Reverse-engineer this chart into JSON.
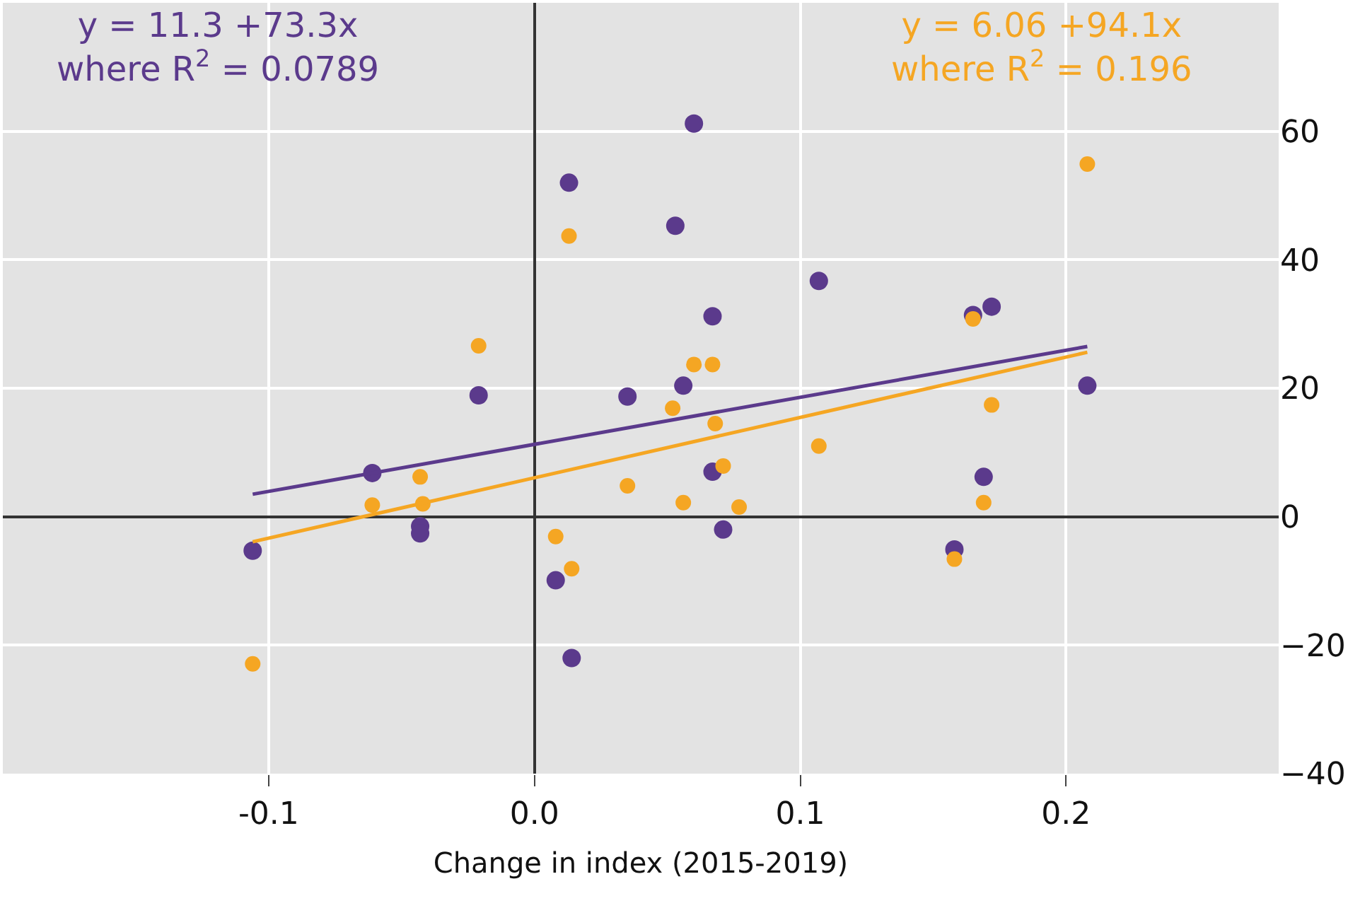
{
  "chart_data": {
    "type": "scatter",
    "xlabel": "Change in index (2015-2019)",
    "xlim": [
      -0.2,
      0.28
    ],
    "xticks": [
      -0.1,
      {
        "value": 0,
        "label": "0.0"
      },
      0.1,
      0.2
    ],
    "ylim": [
      -40,
      80
    ],
    "yticks": [
      {
        "value": -40,
        "label": "−40"
      },
      {
        "value": -20,
        "label": "−20"
      },
      0,
      20,
      40,
      60,
      {
        "value": 80,
        "label": null
      }
    ],
    "grid": true,
    "marker": "circle",
    "series": [
      {
        "color": "#5b3a8c",
        "x": [
          0.013,
          -0.021,
          0.035,
          -0.061,
          -0.043,
          -0.043,
          -0.106,
          0.008,
          0.014,
          0.06,
          0.053,
          0.107,
          0.067,
          0.172,
          0.165,
          0.056,
          0.208,
          0.067,
          0.169,
          0.071,
          0.158
        ],
        "values": [
          52,
          18.9,
          18.7,
          6.8,
          -1.5,
          -2.6,
          -5.3,
          -9.9,
          -22,
          61.2,
          45.3,
          36.7,
          31.2,
          32.7,
          31.4,
          20.4,
          20.4,
          7.0,
          6.2,
          -2.0,
          -5.1
        ]
      },
      {
        "color": "#f5a623",
        "x": [
          0.013,
          -0.021,
          -0.043,
          -0.061,
          -0.042,
          0.035,
          0.008,
          0.014,
          -0.106,
          0.208,
          0.165,
          0.06,
          0.067,
          0.052,
          0.172,
          0.068,
          0.107,
          0.071,
          0.056,
          0.077,
          0.169,
          0.158
        ],
        "values": [
          43.7,
          26.6,
          6.2,
          1.8,
          2.0,
          4.8,
          -3.1,
          -8.1,
          -22.9,
          54.9,
          30.8,
          23.7,
          23.7,
          16.9,
          17.4,
          14.5,
          11.0,
          7.9,
          2.2,
          1.5,
          2.2,
          -6.6
        ]
      },
      {
        "type": "line",
        "color": "#5b3a8c",
        "marker": "none",
        "x": [
          -0.106,
          0.208
        ],
        "values": [
          3.5,
          26.5
        ]
      },
      {
        "type": "line",
        "color": "#f5a623",
        "marker": "none",
        "x": [
          -0.106,
          0.208
        ],
        "values": [
          -3.9,
          25.6
        ]
      }
    ],
    "annotations": [
      "y = 11.3 +73.3x\nwhere R$^{2}$ = 0.0789",
      "y = 6.06 +94.1x\nwhere R$^{2}$ = 0.196"
    ]
  }
}
